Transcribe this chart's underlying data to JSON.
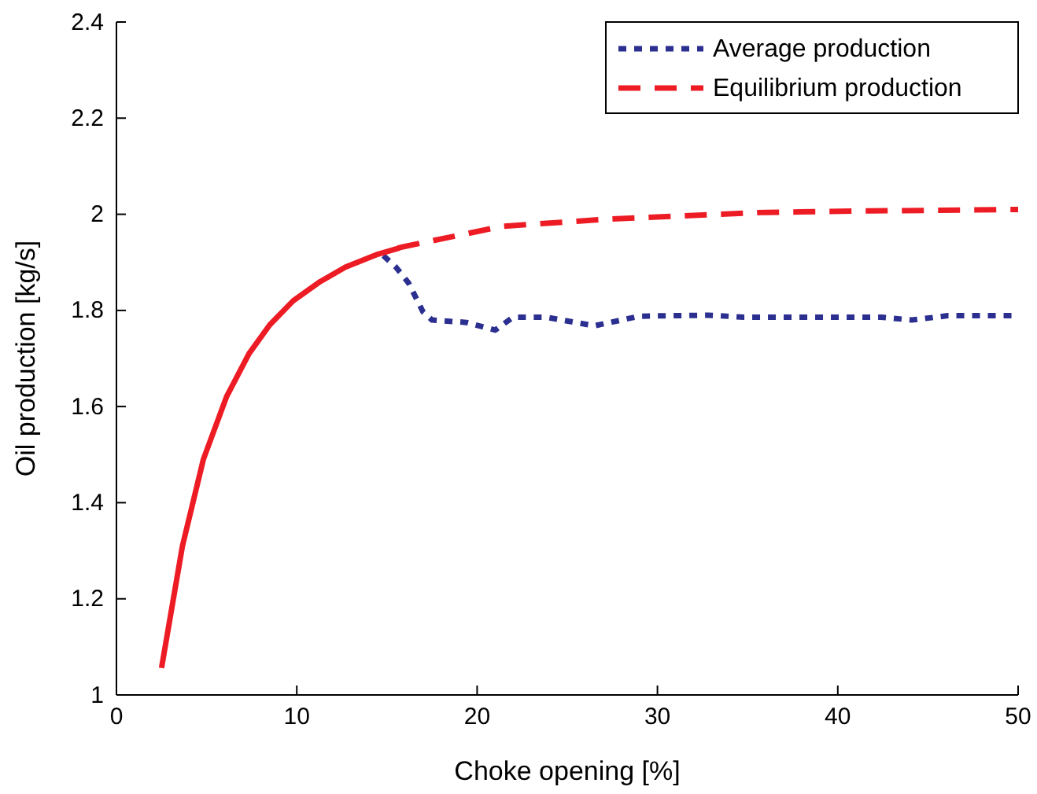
{
  "chart_data": {
    "type": "line",
    "xlabel": "Choke opening [%]",
    "ylabel": "Oil production [kg/s]",
    "xlim": [
      0,
      50
    ],
    "xticks": [
      0,
      10,
      20,
      30,
      40,
      50
    ],
    "ylim": [
      1,
      2.4
    ],
    "yticks": [
      1,
      1.2,
      1.4,
      1.6,
      1.8,
      2,
      2.2,
      2.4
    ],
    "grid": false,
    "legend": "top right",
    "marker": "none",
    "series": [
      {
        "name": "Average production",
        "color": "#2b2f8f",
        "line_style": "dotted",
        "x": [
          14.8,
          15.5,
          16.2,
          17,
          17.5,
          19.4,
          21,
          22,
          23.8,
          26.5,
          29,
          32.8,
          34.8,
          42.4,
          44.1,
          46.1,
          50
        ],
        "values": [
          1.914,
          1.89,
          1.857,
          1.797,
          1.78,
          1.775,
          1.759,
          1.786,
          1.786,
          1.768,
          1.788,
          1.79,
          1.786,
          1.786,
          1.78,
          1.789,
          1.789
        ]
      },
      {
        "name": "Equilibrium production",
        "color": "#ed1c24",
        "line_style": "dashed",
        "x": [
          15.6,
          21.4,
          27.3,
          36,
          41.8,
          50
        ],
        "values": [
          1.93,
          1.975,
          1.99,
          2.004,
          2.007,
          2.01
        ]
      },
      {
        "color": "#ed1c24",
        "line_style": "solid",
        "x": [
          2.5,
          3.66,
          4.82,
          6.1,
          7.35,
          8.5,
          9.8,
          11.3,
          12.7,
          14.5,
          15.7
        ],
        "values": [
          1.056,
          1.31,
          1.49,
          1.62,
          1.71,
          1.77,
          1.82,
          1.86,
          1.89,
          1.917,
          1.93
        ]
      }
    ]
  }
}
